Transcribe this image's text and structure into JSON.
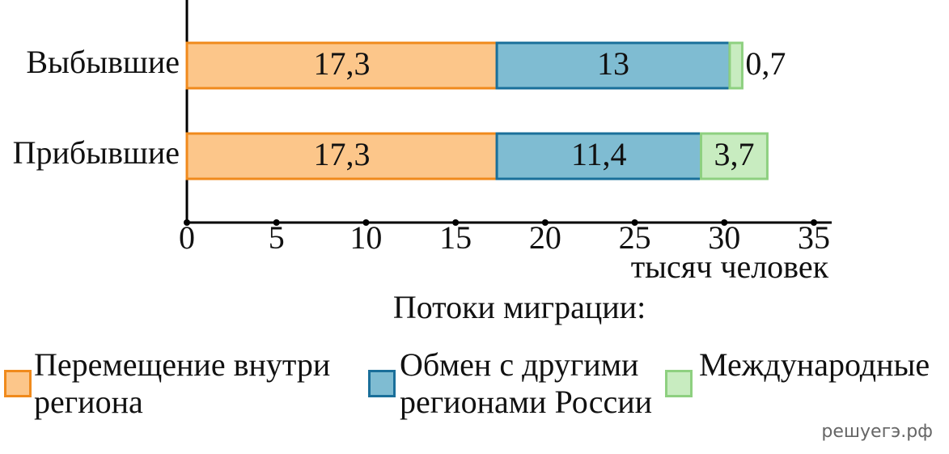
{
  "chart_data": {
    "type": "stacked-bar-horizontal",
    "categories": [
      "Выбывшие",
      "Прибывшие"
    ],
    "series": [
      {
        "name": "Перемещение внутри региона",
        "color": "#fcc68a",
        "edge": "#f08a1c",
        "values": [
          17.3,
          17.3
        ],
        "value_labels": [
          "17,3",
          "17,3"
        ]
      },
      {
        "name": "Обмен с другими регионами России",
        "color": "#7fbcd2",
        "edge": "#1a6f9a",
        "values": [
          13,
          11.4
        ],
        "value_labels": [
          "13",
          "11,4"
        ]
      },
      {
        "name": "Международные",
        "color": "#c8ecc0",
        "edge": "#8ed080",
        "values": [
          0.7,
          3.7
        ],
        "value_labels": [
          "0,7",
          "3,7"
        ]
      }
    ],
    "xlim": [
      0,
      36
    ],
    "xticks": [
      0,
      5,
      10,
      15,
      20,
      25,
      30,
      35
    ],
    "x_label": "тысяч человек",
    "legend_title": "Потоки миграции:",
    "watermark": "решуегэ.рф"
  }
}
